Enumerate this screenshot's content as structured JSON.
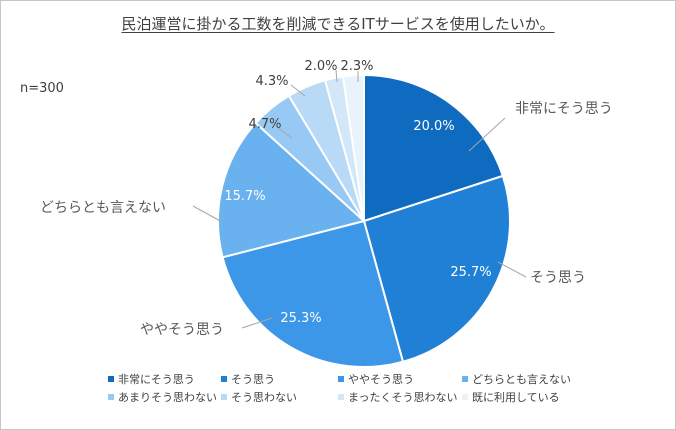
{
  "title": "民泊運営に掛かる工数を削減できるITサービスを使用したいか。",
  "sample": "n=300",
  "chart_data": {
    "type": "pie",
    "start_angle_deg": 0,
    "direction": "clockwise",
    "slices": [
      {
        "label": "非常にそう思う",
        "value": 20.0,
        "value_label": "20.0%",
        "color": "#0E6BBF"
      },
      {
        "label": "そう思う",
        "value": 25.7,
        "value_label": "25.7%",
        "color": "#1F80D6"
      },
      {
        "label": "ややそう思う",
        "value": 25.3,
        "value_label": "25.3%",
        "color": "#3C97E8"
      },
      {
        "label": "どちらとも言えない",
        "value": 15.7,
        "value_label": "15.7%",
        "color": "#6AB1EF"
      },
      {
        "label": "あまりそう思わない",
        "value": 4.7,
        "value_label": "4.7%",
        "color": "#97C9F4"
      },
      {
        "label": "そう思わない",
        "value": 4.3,
        "value_label": "4.3%",
        "color": "#B8DAF7"
      },
      {
        "label": "まったくそう思わない",
        "value": 2.0,
        "value_label": "2.0%",
        "color": "#D3E7F9"
      },
      {
        "label": "既に利用している",
        "value": 2.3,
        "value_label": "2.3%",
        "color": "#E8F3FC"
      }
    ],
    "outside_labels": [
      "非常にそう思う",
      "そう思う",
      "ややそう思う",
      "どちらとも言えない"
    ],
    "legend_placement": "bottom"
  }
}
